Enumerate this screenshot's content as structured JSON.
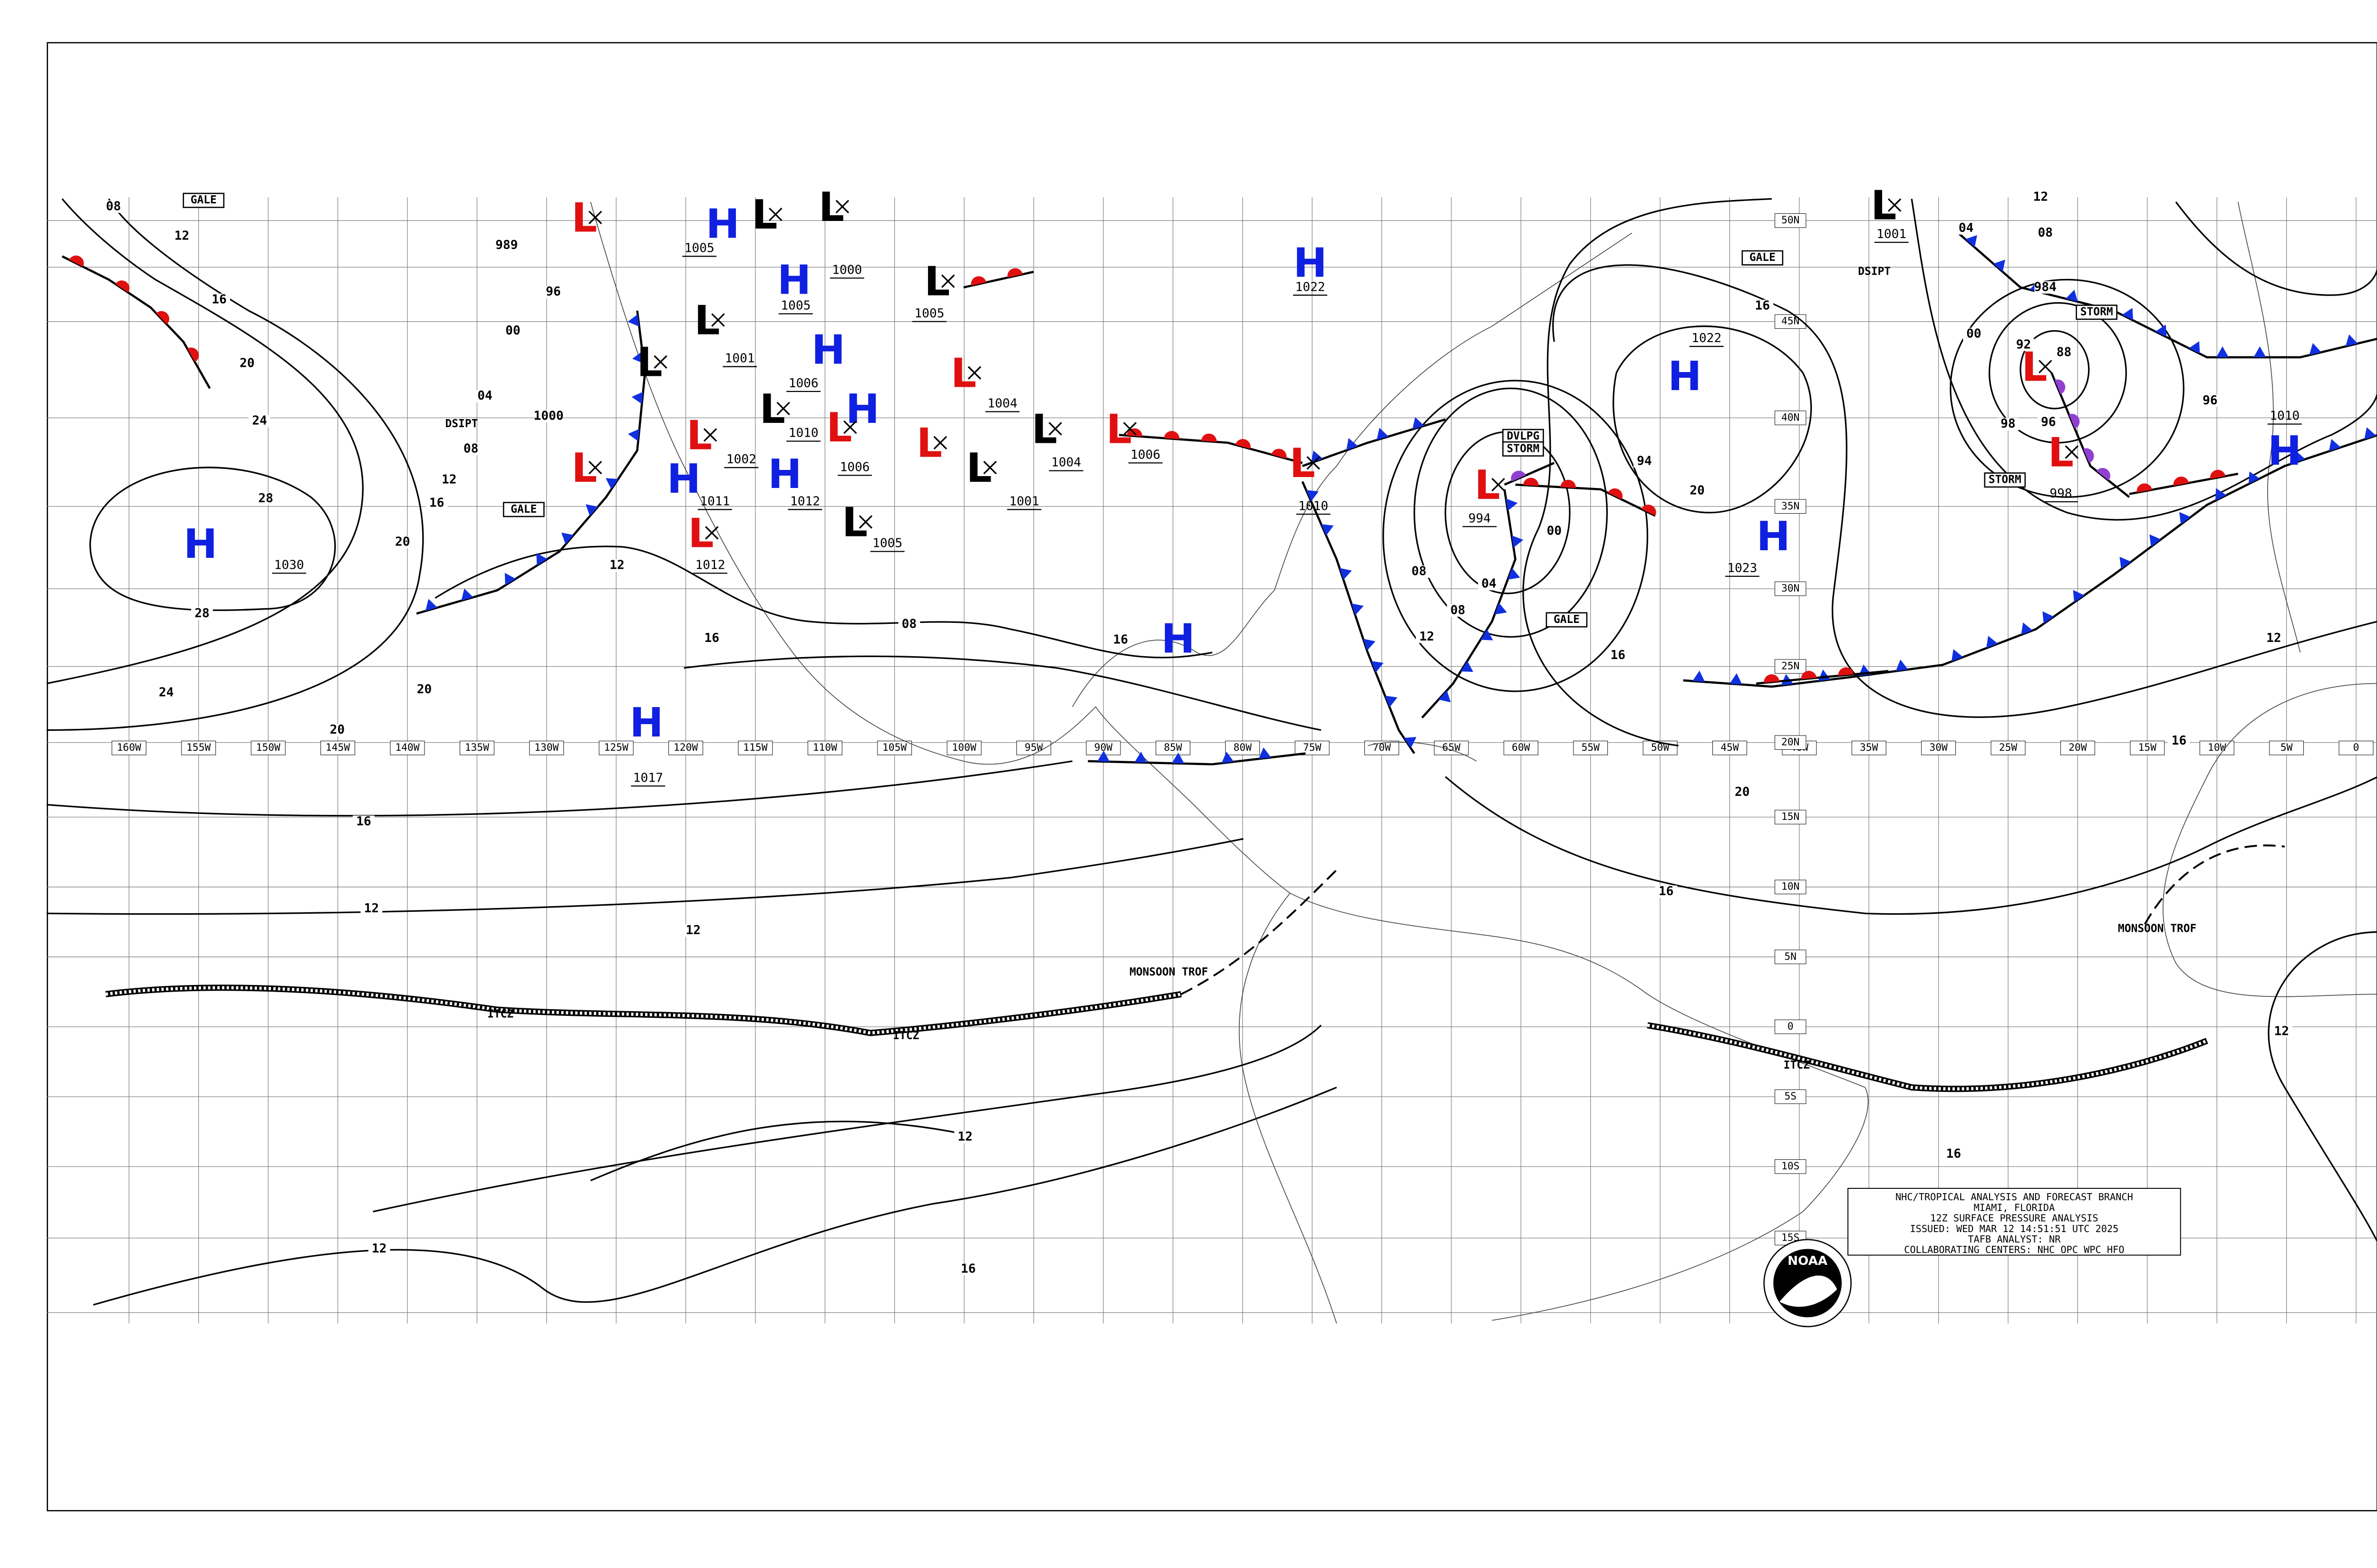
{
  "map": {
    "longitude_labels": [
      "160W",
      "155W",
      "150W",
      "145W",
      "140W",
      "135W",
      "130W",
      "125W",
      "120W",
      "115W",
      "110W",
      "105W",
      "100W",
      "95W",
      "90W",
      "85W",
      "80W",
      "75W",
      "70W",
      "65W",
      "60W",
      "55W",
      "50W",
      "45W",
      "40W",
      "35W",
      "30W",
      "25W",
      "20W",
      "15W",
      "10W",
      "5W",
      "0"
    ],
    "latitude_labels": [
      "50N",
      "45N",
      "40N",
      "35N",
      "30N",
      "25N",
      "20N",
      "15N",
      "10N",
      "5N",
      "0",
      "5S",
      "10S",
      "15S"
    ],
    "highs": [
      {
        "label": "H",
        "pressure": "1030"
      },
      {
        "label": "H",
        "pressure": "1017"
      },
      {
        "label": "H",
        "pressure": "1022"
      },
      {
        "label": "H",
        "pressure": "1022"
      },
      {
        "label": "H",
        "pressure": "1023"
      },
      {
        "label": "H",
        "pressure": "1010"
      },
      {
        "label": "H"
      },
      {
        "label": "H",
        "pressure": "1005"
      },
      {
        "label": "H",
        "pressure": "1005"
      },
      {
        "label": "H",
        "pressure": "1006"
      },
      {
        "label": "H",
        "pressure": "1012"
      },
      {
        "label": "H",
        "pressure": "1011"
      },
      {
        "label": "H",
        "pressure": "1006"
      }
    ],
    "lows": [
      {
        "label": "L",
        "color": "red"
      },
      {
        "label": "L",
        "color": "red"
      },
      {
        "label": "L",
        "color": "red",
        "pressure": "1002"
      },
      {
        "label": "L",
        "color": "red",
        "pressure": "1012"
      },
      {
        "label": "L",
        "color": "red",
        "pressure": "1004"
      },
      {
        "label": "L",
        "color": "red"
      },
      {
        "label": "L",
        "color": "red",
        "pressure": "1010"
      },
      {
        "label": "L",
        "color": "red",
        "pressure": "1006"
      },
      {
        "label": "L",
        "color": "red",
        "pressure": "1010"
      },
      {
        "label": "L",
        "color": "red",
        "pressure": "994"
      },
      {
        "label": "L",
        "color": "red"
      },
      {
        "label": "L",
        "color": "red",
        "pressure": "998"
      },
      {
        "label": "L",
        "color": "black",
        "pressure": "1001"
      },
      {
        "label": "L",
        "color": "black"
      },
      {
        "label": "L",
        "color": "black"
      },
      {
        "label": "L",
        "color": "black",
        "pressure": "1000"
      },
      {
        "label": "L",
        "color": "black",
        "pressure": "1005"
      },
      {
        "label": "L",
        "color": "black"
      },
      {
        "label": "L",
        "color": "black",
        "pressure": "1001"
      },
      {
        "label": "L",
        "color": "black",
        "pressure": "1004"
      },
      {
        "label": "L",
        "color": "black",
        "pressure": "1001"
      },
      {
        "label": "L",
        "color": "black",
        "pressure": "1005"
      }
    ],
    "isobar_labels": [
      "08",
      "12",
      "16",
      "20",
      "24",
      "28",
      "28",
      "24",
      "20",
      "20",
      "16",
      "12",
      "12",
      "12",
      "12",
      "16",
      "16",
      "20",
      "16",
      "12",
      "16",
      "12",
      "96",
      "96",
      "98",
      "92",
      "88",
      "984",
      "00",
      "04",
      "08",
      "12",
      "16",
      "20",
      "16",
      "12",
      "08",
      "08",
      "04",
      "00",
      "94",
      "989",
      "96",
      "00",
      "04",
      "08",
      "12",
      "16",
      "20",
      "12",
      "16",
      "08",
      "16",
      "1000"
    ],
    "annotations": [
      "GALE",
      "GALE",
      "GALE",
      "GALE",
      "STORM",
      "STORM",
      "DVLPG",
      "STORM",
      "DSIPT",
      "DSIPT",
      "ITCZ",
      "ITCZ",
      "ITCZ",
      "MONSOON TROF",
      "MONSOON TROF"
    ],
    "info_box": [
      "NHC/TROPICAL ANALYSIS AND FORECAST BRANCH",
      "MIAMI, FLORIDA",
      "12Z SURFACE PRESSURE ANALYSIS",
      "ISSUED: WED MAR 12 14:51:51 UTC 2025",
      "TAFB ANALYST: NR",
      "COLLABORATING CENTERS: NHC OPC WPC HFO"
    ],
    "logo": "NOAA"
  }
}
